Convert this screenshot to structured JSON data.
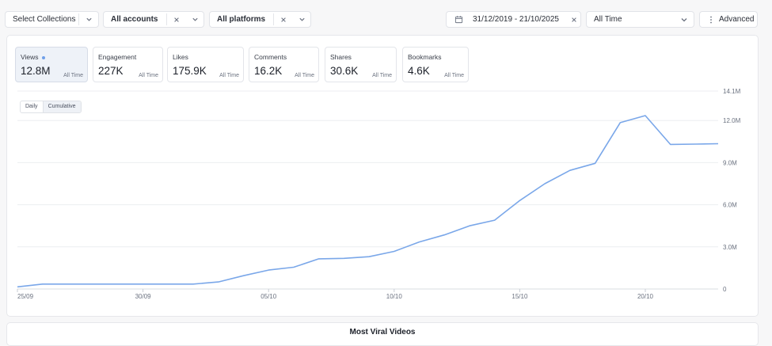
{
  "filters": {
    "collections": {
      "label": "Select Collections",
      "icon": "chevron-down-icon"
    },
    "accounts": {
      "label": "All accounts",
      "clear_icon": "close-icon",
      "dropdown_icon": "chevron-down-icon"
    },
    "platforms": {
      "label": "All platforms",
      "clear_icon": "close-icon",
      "dropdown_icon": "chevron-down-icon"
    },
    "date_range": {
      "label": "31/12/2019 - 21/10/2025",
      "icon": "calendar-icon",
      "clear_icon": "close-icon"
    },
    "time_range": {
      "label": "All Time",
      "icon": "chevron-down-icon"
    },
    "advanced": {
      "label": "Advanced",
      "icon": "vertical-ellipsis-icon"
    }
  },
  "metrics": [
    {
      "name": "Views",
      "value": "12.8M",
      "period": "All Time",
      "active": true
    },
    {
      "name": "Engagement",
      "value": "227K",
      "period": "All Time",
      "active": false
    },
    {
      "name": "Likes",
      "value": "175.9K",
      "period": "All Time",
      "active": false
    },
    {
      "name": "Comments",
      "value": "16.2K",
      "period": "All Time",
      "active": false
    },
    {
      "name": "Shares",
      "value": "30.6K",
      "period": "All Time",
      "active": false
    },
    {
      "name": "Bookmarks",
      "value": "4.6K",
      "period": "All Time",
      "active": false
    }
  ],
  "view_toggle": {
    "daily": "Daily",
    "cumulative": "Cumulative",
    "selected": "Cumulative"
  },
  "chart_data": {
    "type": "line",
    "series": [
      {
        "values": [
          [
            0,
            0.15
          ],
          [
            1,
            0.35
          ],
          [
            2,
            0.35
          ],
          [
            3,
            0.35
          ],
          [
            4,
            0.35
          ],
          [
            5,
            0.35
          ],
          [
            6,
            0.35
          ],
          [
            7,
            0.35
          ],
          [
            8,
            0.5
          ],
          [
            9,
            0.95
          ],
          [
            10,
            1.35
          ],
          [
            11,
            1.55
          ],
          [
            12,
            2.15
          ],
          [
            13,
            2.18
          ],
          [
            14,
            2.3
          ],
          [
            15,
            2.68
          ],
          [
            16,
            3.35
          ],
          [
            17,
            3.85
          ],
          [
            18,
            4.5
          ],
          [
            19,
            4.9
          ],
          [
            20,
            6.3
          ],
          [
            21,
            7.5
          ],
          [
            22,
            8.45
          ],
          [
            23,
            8.95
          ],
          [
            24,
            11.85
          ],
          [
            25,
            12.35
          ],
          [
            26,
            10.3
          ],
          [
            27,
            10.32
          ],
          [
            27.9,
            10.35
          ]
        ],
        "color": "#7aa7e9"
      }
    ],
    "x_ticks": [
      {
        "x": 0,
        "label": "25/09"
      },
      {
        "x": 5,
        "label": "30/09"
      },
      {
        "x": 10,
        "label": "05/10"
      },
      {
        "x": 15,
        "label": "10/10"
      },
      {
        "x": 20,
        "label": "15/10"
      },
      {
        "x": 25,
        "label": "20/10"
      }
    ],
    "y_ticks": [
      {
        "y": 0,
        "label": "0"
      },
      {
        "y": 3,
        "label": "3.0M"
      },
      {
        "y": 6,
        "label": "6.0M"
      },
      {
        "y": 9,
        "label": "9.0M"
      },
      {
        "y": 12,
        "label": "12.0M"
      },
      {
        "y": 14.1,
        "label": "14.1M"
      }
    ],
    "xlim": [
      0,
      27.9
    ],
    "ylim": [
      0,
      14.1
    ],
    "y_unit": "millions of views",
    "grid": true
  },
  "bottom_section": {
    "title": "Most Viral Videos"
  }
}
